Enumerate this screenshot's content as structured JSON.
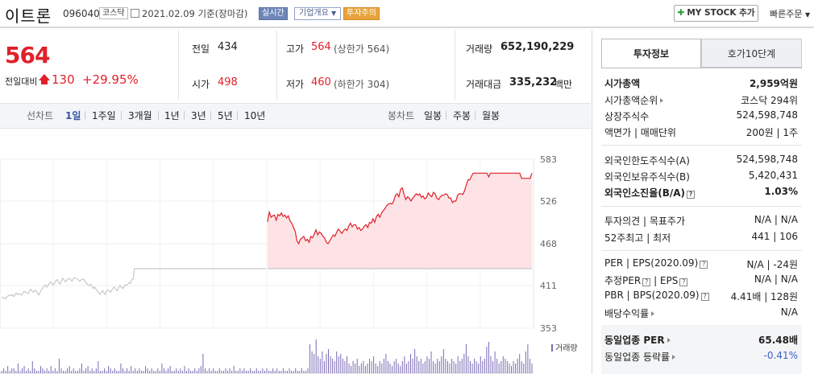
{
  "header": {
    "name": "이트론",
    "code": "096040",
    "market": "코스닥",
    "date": "2021.02.09",
    "basis": "기준(장마감)",
    "live": "실시간",
    "corp_info": "기업개요",
    "warning": "투자주의",
    "mystock": "MY STOCK 추가",
    "quick_order": "빠른주문"
  },
  "price": {
    "current": "564",
    "change_label": "전일대비",
    "change": "130",
    "change_pct": "+29.95%"
  },
  "quote": {
    "prev_label": "전일",
    "prev": "434",
    "open_label": "시가",
    "open": "498",
    "high_label": "고가",
    "high": "564",
    "high_sub": "(상한가 564)",
    "low_label": "저가",
    "low": "460",
    "low_sub": "(하한가 304)",
    "volume_label": "거래량",
    "volume": "652,190,229",
    "amount_label": "거래대금",
    "amount": "335,232",
    "amount_unit": "백만"
  },
  "tabs": {
    "line_label": "선차트",
    "line": [
      "1일",
      "1주일",
      "3개월",
      "1년",
      "3년",
      "5년",
      "10년"
    ],
    "candle_label": "봉차트",
    "candle": [
      "일봉",
      "주봉",
      "월봉"
    ]
  },
  "chart_data": {
    "type": "line",
    "yticks": [
      583,
      526,
      468,
      411,
      353
    ],
    "ylim": [
      353,
      583
    ],
    "prev_close": 434,
    "volume_legend": "거래량",
    "series": [
      {
        "values": [
          394,
          395,
          394,
          393,
          396,
          397,
          398,
          397,
          399,
          396,
          398,
          401,
          399,
          400,
          399,
          398,
          401,
          403,
          402,
          401,
          400,
          404,
          406,
          403,
          402,
          405,
          404,
          401,
          398,
          402,
          405,
          408,
          410,
          412,
          409,
          411,
          414,
          416,
          413,
          412,
          415,
          418,
          419,
          415,
          413,
          417,
          421,
          419,
          416,
          418,
          420,
          421,
          419,
          417,
          420,
          422,
          421,
          420,
          418,
          417,
          419,
          420,
          419,
          416,
          414,
          412,
          411,
          413,
          410,
          407,
          409,
          406,
          404,
          401,
          399,
          402,
          404,
          401,
          399,
          403,
          405,
          404,
          402,
          405,
          408,
          409,
          406,
          404,
          408,
          411,
          409,
          407,
          409,
          412,
          411,
          413,
          415,
          414,
          419,
          420,
          434,
          434,
          434,
          434,
          434,
          434,
          434,
          434,
          434,
          434,
          434,
          434,
          434,
          434,
          434,
          434,
          434,
          434,
          434,
          434,
          434,
          434,
          434,
          434,
          434,
          434,
          434,
          434,
          434,
          434,
          434,
          434,
          434,
          434,
          434,
          434,
          434,
          434,
          434,
          434,
          434,
          434,
          434,
          434,
          434,
          434,
          434,
          434,
          434,
          434,
          434,
          434,
          434,
          434,
          434,
          434,
          434,
          434,
          434,
          434,
          434,
          434,
          434,
          434,
          434,
          434,
          434,
          434,
          434,
          434,
          434,
          434,
          434,
          434,
          434,
          434,
          434,
          434,
          434,
          434,
          434,
          434,
          434,
          434,
          434,
          434,
          434,
          434,
          434,
          434,
          434,
          434,
          434,
          434,
          434,
          434,
          434,
          434,
          434,
          434
        ]
      },
      {
        "values": [
          498,
          511,
          504,
          506,
          507,
          500,
          508,
          506,
          510,
          505,
          507,
          503,
          506,
          499,
          496,
          490,
          485,
          472,
          468,
          474,
          476,
          478,
          472,
          474,
          470,
          478,
          476,
          481,
          487,
          480,
          484,
          482,
          478,
          476,
          470,
          468,
          472,
          476,
          480,
          478,
          484,
          488,
          485,
          482,
          486,
          488,
          486,
          492,
          496,
          491,
          494,
          494,
          488,
          490,
          486,
          488,
          492,
          494,
          490,
          497,
          496,
          502,
          497,
          505,
          508,
          504,
          510,
          513,
          516,
          520,
          522,
          523,
          522,
          526,
          534,
          536,
          532,
          542,
          544,
          535,
          528,
          532,
          530,
          526,
          530,
          533,
          536,
          534,
          536,
          531,
          533,
          529,
          531,
          537,
          534,
          532,
          538,
          536,
          530,
          528,
          532,
          534,
          534,
          536,
          535,
          530,
          530,
          524,
          526,
          526,
          534,
          536,
          536,
          535,
          540,
          548,
          555,
          555,
          560,
          564,
          564,
          564,
          564,
          564,
          564,
          564,
          564,
          564,
          559,
          564,
          564,
          564,
          564,
          564,
          564,
          564,
          564,
          564,
          564,
          564,
          564,
          564,
          564,
          564,
          564,
          564,
          564,
          557,
          557,
          557,
          557,
          557,
          557,
          564
        ]
      }
    ],
    "volume": [
      1,
      2,
      1,
      3,
      1,
      2,
      2,
      1,
      4,
      1,
      2,
      3,
      1,
      2,
      1,
      5,
      2,
      1,
      1,
      3,
      2,
      1,
      2,
      1,
      3,
      1,
      2,
      1,
      6,
      2,
      1,
      1,
      2,
      3,
      1,
      2,
      1,
      1,
      2,
      4,
      1,
      2,
      3,
      1,
      2,
      1,
      2,
      5,
      1,
      1,
      2,
      1,
      3,
      2,
      1,
      2,
      1,
      1,
      4,
      2,
      1,
      2,
      1,
      3,
      1,
      2,
      1,
      2,
      1,
      1,
      3,
      2,
      1,
      2,
      1,
      1,
      2,
      1,
      4,
      2,
      1,
      2,
      3,
      1,
      1,
      2,
      1,
      2,
      1,
      3,
      1,
      2,
      1,
      1,
      2,
      1,
      2,
      3,
      8,
      2,
      1,
      2,
      1,
      2,
      1,
      1,
      2,
      1,
      1,
      2,
      1,
      2,
      1,
      3,
      1,
      1,
      2,
      1,
      2,
      1,
      1,
      2,
      1,
      1,
      2,
      1,
      1,
      2,
      1,
      2,
      1,
      1,
      2,
      1,
      2,
      1,
      1,
      2,
      1,
      1,
      2,
      1,
      1,
      2,
      1,
      1,
      2,
      1,
      1,
      2,
      12,
      9,
      8,
      14,
      7,
      6,
      9,
      5,
      8,
      10,
      7,
      6,
      5,
      9,
      7,
      8,
      6,
      5,
      7,
      4,
      3,
      5,
      4,
      6,
      3,
      4,
      5,
      3,
      4,
      6,
      5,
      7,
      4,
      3,
      5,
      4,
      6,
      8,
      5,
      4,
      3,
      5,
      6,
      4,
      3,
      5,
      7,
      4,
      5,
      8,
      6,
      10,
      7,
      5,
      6,
      4,
      5,
      7,
      6,
      9,
      5,
      4,
      6,
      5,
      7,
      10,
      6,
      5,
      4,
      6,
      5,
      4,
      7,
      5,
      6,
      8,
      12,
      7,
      5,
      4,
      6,
      5,
      4,
      7,
      5,
      6,
      11,
      13,
      7,
      5,
      9,
      6,
      4,
      5,
      7,
      6,
      5,
      4,
      3,
      5,
      4,
      6,
      8,
      5,
      4,
      9,
      12,
      6,
      4
    ]
  },
  "right_panel": {
    "tab_invest": "투자정보",
    "tab_orderbook": "호가10단계",
    "mcap_label": "시가총액",
    "mcap": "2,959억원",
    "mcap_rank_label": "시가총액순위",
    "mcap_rank": "코스닥 294위",
    "shares_label": "상장주식수",
    "shares": "524,598,748",
    "par_label": "액면가",
    "unit_label": "매매단위",
    "par": "200원",
    "unit": "1주",
    "foreign_limit_label": "외국인한도주식수(A)",
    "foreign_limit": "524,598,748",
    "foreign_hold_label": "외국인보유주식수(B)",
    "foreign_hold": "5,420,431",
    "foreign_rate_label": "외국인소진율(B/A)",
    "foreign_rate": "1.03%",
    "opinion_label": "투자의견",
    "target_label": "목표주가",
    "opinion": "N/A",
    "target": "N/A",
    "w52_label": "52주최고",
    "w52_low_label": "최저",
    "w52_high": "441",
    "w52_low": "106",
    "per_label": "PER",
    "eps_label": "EPS(2020.09)",
    "per": "N/A",
    "eps": "-24원",
    "est_per_label": "추정PER",
    "est_eps_label": "EPS",
    "est_per": "N/A",
    "est_eps": "N/A",
    "pbr_label": "PBR",
    "bps_label": "BPS(2020.09)",
    "pbr": "4.41배",
    "bps": "128원",
    "div_label": "배당수익률",
    "div": "N/A",
    "sector_per_label": "동일업종 PER",
    "sector_per": "65.48배",
    "sector_rate_label": "동일업종 등락률",
    "sector_rate": "-0.41%"
  }
}
